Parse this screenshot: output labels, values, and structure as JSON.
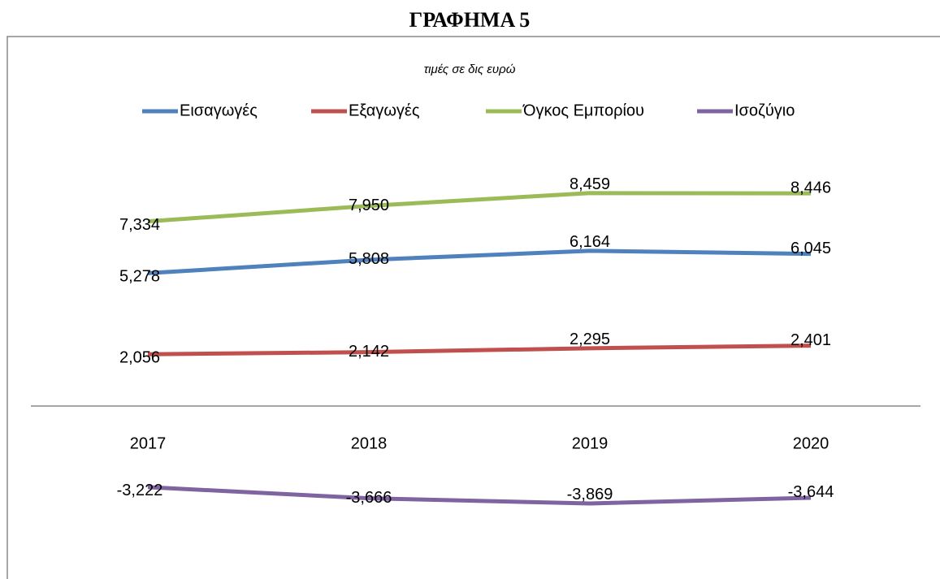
{
  "chart_data": {
    "type": "line",
    "title": "ΓΡΑΦΗΜΑ 5",
    "subtitle": "τιμές σε δις ευρώ",
    "categories": [
      "2017",
      "2018",
      "2019",
      "2020"
    ],
    "ylim": [
      -6,
      10
    ],
    "series": [
      {
        "name": "Εισαγωγές",
        "color": "#4f81bd",
        "values": [
          5.278,
          5.808,
          6.164,
          6.045
        ],
        "value_labels": [
          "5,278",
          "5,808",
          "6,164",
          "6,045"
        ]
      },
      {
        "name": "Εξαγωγές",
        "color": "#c0504d",
        "values": [
          2.056,
          2.142,
          2.295,
          2.401
        ],
        "value_labels": [
          "2,056",
          "2,142",
          "2,295",
          "2,401"
        ]
      },
      {
        "name": "Όγκος Εμπορίου",
        "color": "#9bbb59",
        "values": [
          7.334,
          7.95,
          8.459,
          8.446
        ],
        "value_labels": [
          "7,334",
          "7,950",
          "8,459",
          "8,446"
        ]
      },
      {
        "name": "Ισοζύγιο",
        "color": "#8064a2",
        "values": [
          -3.222,
          -3.666,
          -3.869,
          -3.644
        ],
        "value_labels": [
          "-3,222",
          "-3,666",
          "-3,869",
          "-3,644"
        ]
      }
    ]
  }
}
